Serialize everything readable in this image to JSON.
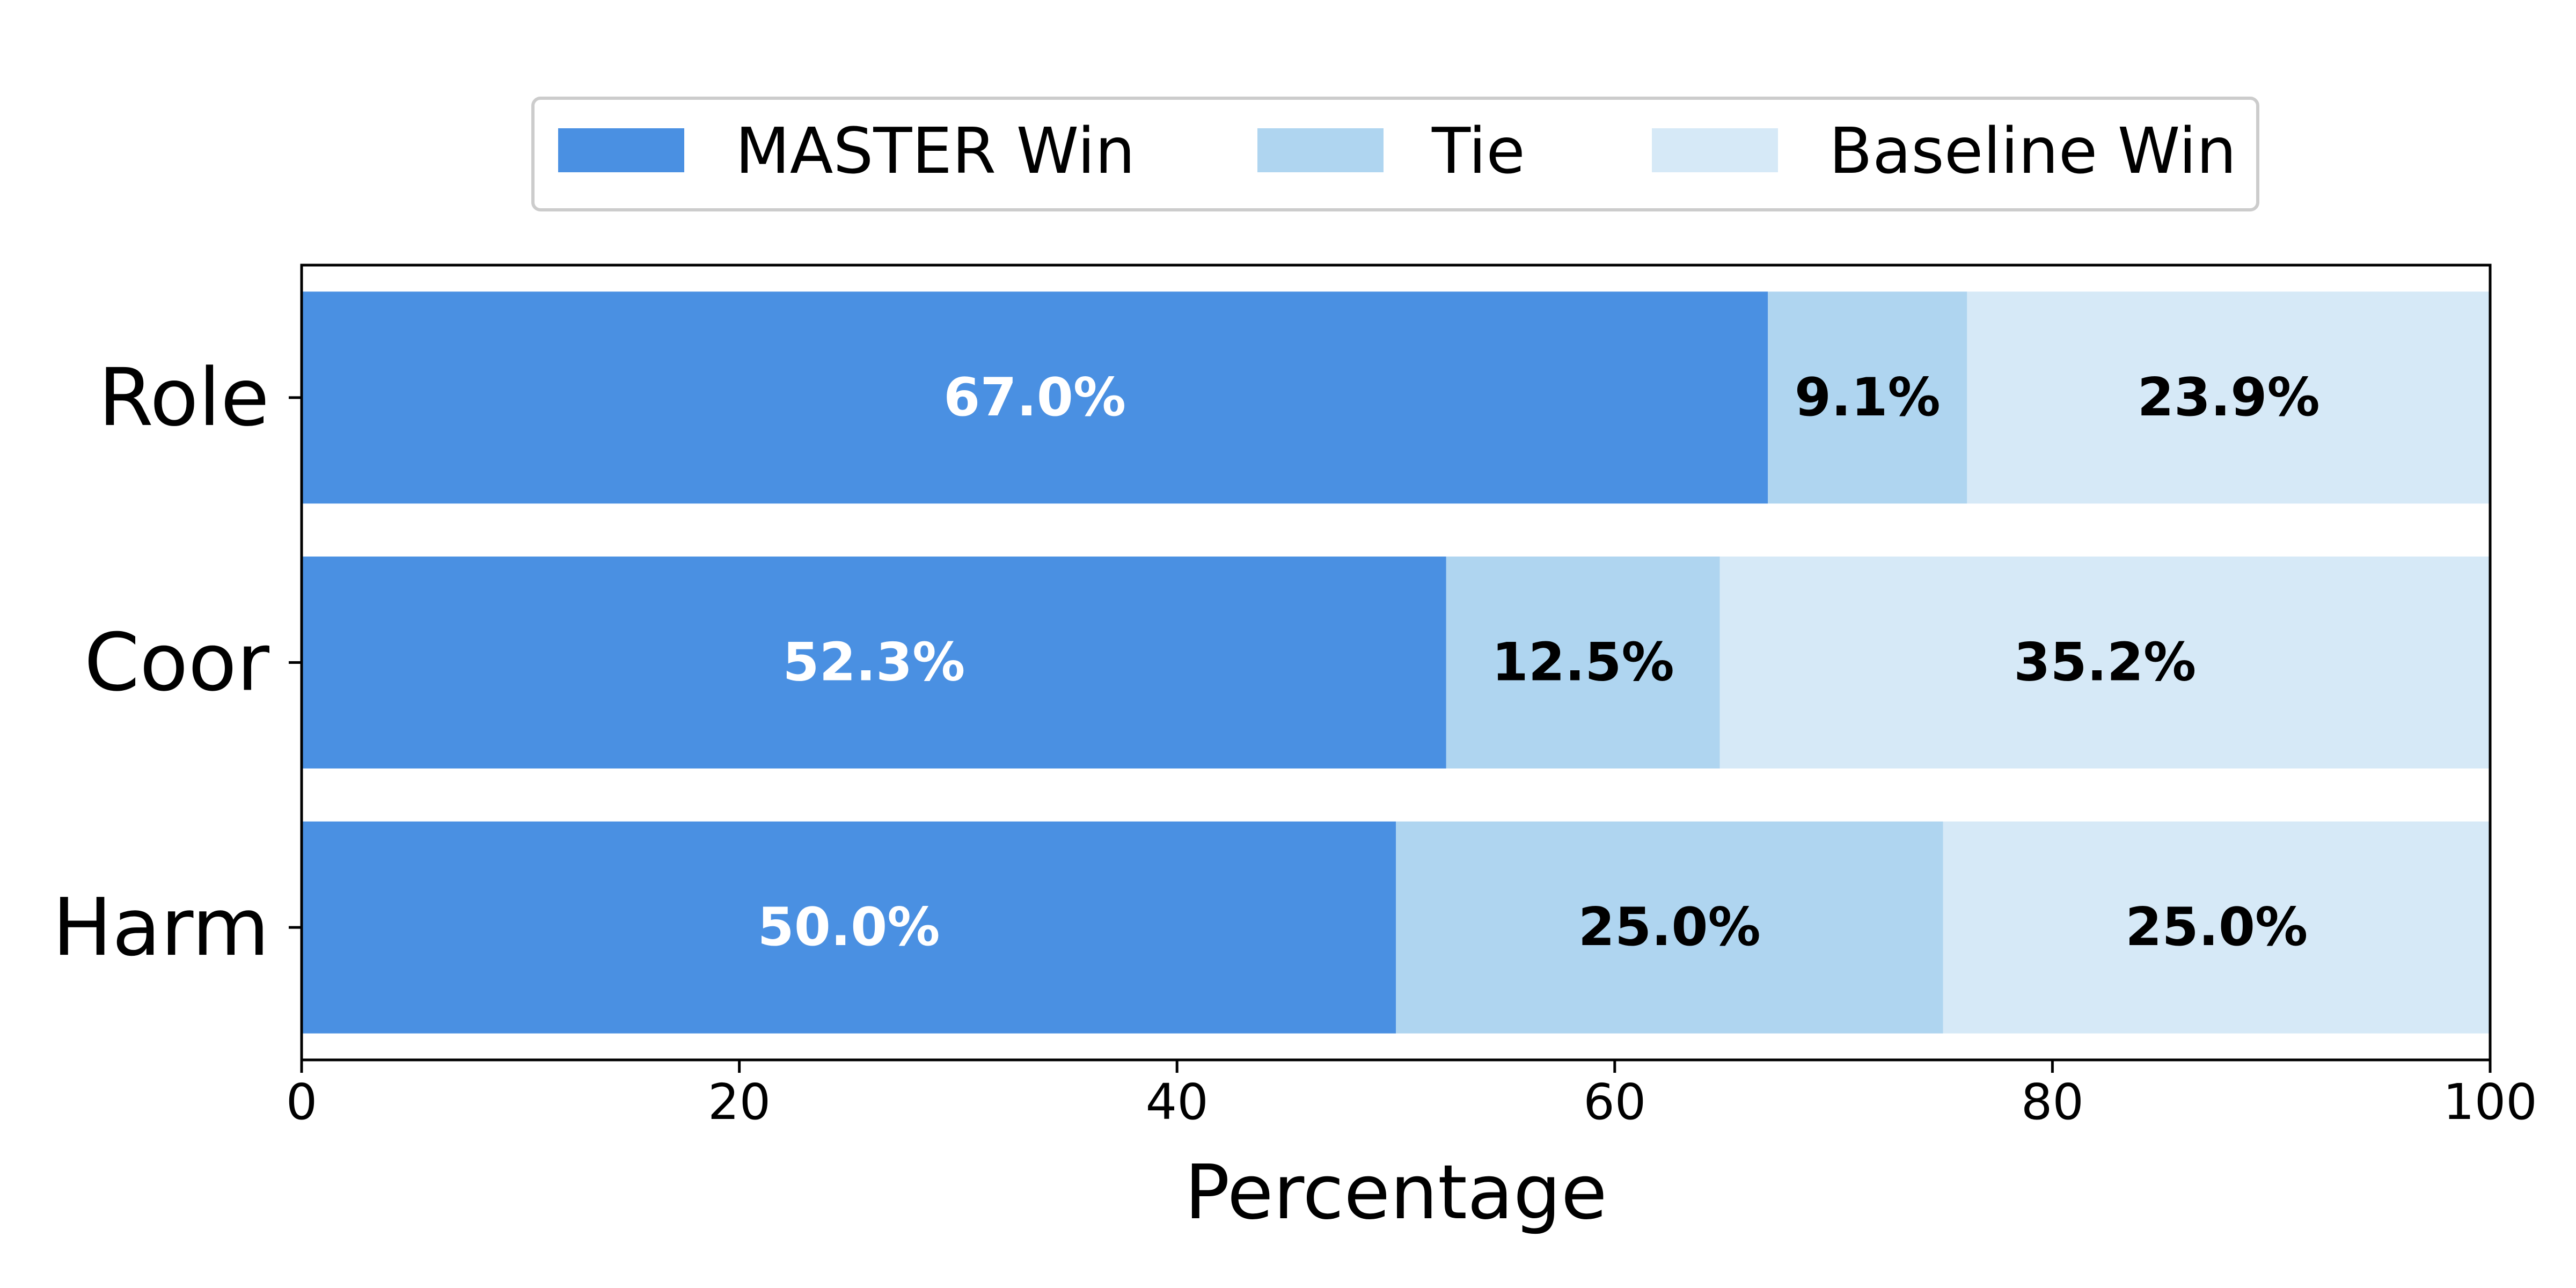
{
  "chart_data": {
    "type": "bar",
    "orientation": "horizontal",
    "stacked": true,
    "categories": [
      "Role",
      "Coor",
      "Harm"
    ],
    "series": [
      {
        "name": "MASTER Win",
        "color": "#4a90e2",
        "label_color": "#ffffff",
        "values": [
          67.0,
          52.3,
          50.0
        ],
        "labels": [
          "67.0%",
          "52.3%",
          "50.0%"
        ]
      },
      {
        "name": "Tie",
        "color": "#afd5f0",
        "label_color": "#000000",
        "values": [
          9.1,
          12.5,
          25.0
        ],
        "labels": [
          "9.1%",
          "12.5%",
          "25.0%"
        ]
      },
      {
        "name": "Baseline Win",
        "color": "#d6e9f7",
        "label_color": "#000000",
        "values": [
          23.9,
          35.2,
          25.0
        ],
        "labels": [
          "23.9%",
          "35.2%",
          "25.0%"
        ]
      }
    ],
    "xlabel": "Percentage",
    "ylabel": "",
    "xlim": [
      0,
      100
    ],
    "xticks": [
      0,
      20,
      40,
      60,
      80,
      100
    ],
    "xtick_labels": [
      "0",
      "20",
      "40",
      "60",
      "80",
      "100"
    ],
    "grid": false,
    "legend_position": "top-center"
  }
}
